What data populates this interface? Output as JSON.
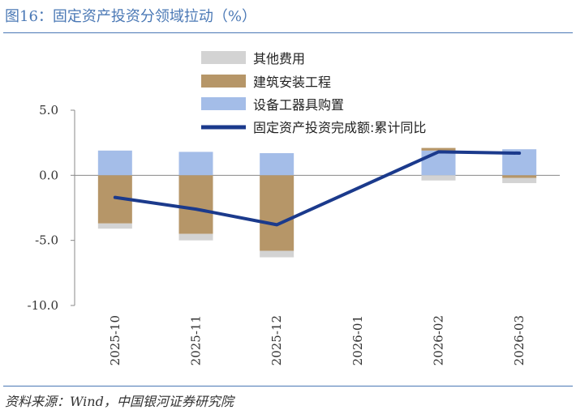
{
  "title": "图16：固定资产投资分领域拉动（%）",
  "source": "资料来源：Wind，中国银河证券研究院",
  "chart_data": {
    "type": "bar",
    "categories": [
      "2025-10",
      "2025-11",
      "2025-12",
      "2026-01",
      "2026-02",
      "2026-03"
    ],
    "ylim": [
      -10,
      5
    ],
    "yticks": [
      "5.0",
      "0.0",
      "-5.0",
      "-10.0"
    ],
    "series": [
      {
        "name": "其他费用",
        "type": "bar",
        "color": "#d3d3d3",
        "values": [
          -0.4,
          -0.5,
          -0.5,
          null,
          -0.4,
          -0.4
        ]
      },
      {
        "name": "建筑安装工程",
        "type": "bar",
        "color": "#b69668",
        "values": [
          -3.7,
          -4.5,
          -5.8,
          null,
          0.2,
          -0.2
        ]
      },
      {
        "name": "设备工器具购置",
        "type": "bar",
        "color": "#a4bde8",
        "values": [
          1.9,
          1.8,
          1.7,
          null,
          1.9,
          2.0
        ]
      },
      {
        "name": "固定资产投资完成额:累计同比",
        "type": "line",
        "color": "#1b3a8c",
        "values": [
          -1.7,
          -2.6,
          -3.8,
          null,
          1.8,
          1.7
        ]
      }
    ]
  }
}
